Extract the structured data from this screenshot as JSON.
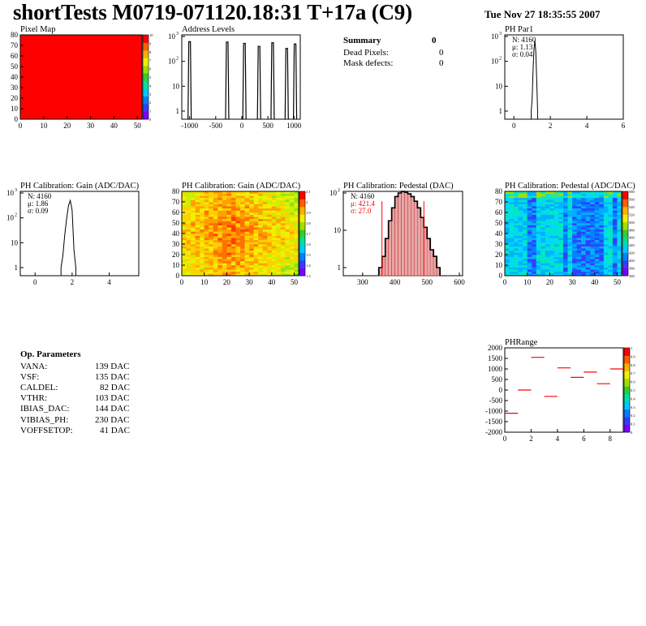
{
  "page": {
    "title": "shortTests M0719-071120.18:31 T+17a (C9)",
    "timestamp": "Tue Nov 27 18:35:55 2007"
  },
  "summary": {
    "heading": "Summary",
    "heading_value": "0",
    "rows": [
      {
        "label": "Dead Pixels:",
        "value": "0"
      },
      {
        "label": "Mask defects:",
        "value": "0"
      }
    ]
  },
  "op_params": {
    "heading": "Op. Parameters",
    "rows": [
      {
        "name": "VANA:",
        "value": "139 DAC"
      },
      {
        "name": "VSF:",
        "value": "135 DAC"
      },
      {
        "name": "CALDEL:",
        "value": "82 DAC"
      },
      {
        "name": "VTHR:",
        "value": "103 DAC"
      },
      {
        "name": "IBIAS_DAC:",
        "value": "144 DAC"
      },
      {
        "name": "VIBIAS_PH:",
        "value": "230 DAC"
      },
      {
        "name": "VOFFSETOP:",
        "value": "41 DAC"
      }
    ]
  },
  "colors": {
    "hist_line": "#000000",
    "pixel_map_fill": "#ff0000",
    "fit_line": "#ff0000",
    "pedestal_fill": "#c02020"
  },
  "chart_data": [
    {
      "id": "pixel_map",
      "type": "heatmap",
      "title": "Pixel Map",
      "uniform_value": 10,
      "xlim": [
        0,
        52
      ],
      "ylim": [
        0,
        80
      ],
      "xticks": [
        "0",
        "10",
        "20",
        "30",
        "40",
        "50"
      ],
      "yticks": [
        "0",
        "10",
        "20",
        "30",
        "40",
        "50",
        "60",
        "70",
        "80"
      ],
      "zticks": [
        "0",
        "1",
        "2",
        "3",
        "4",
        "5",
        "6",
        "7",
        "8",
        "9",
        "10"
      ]
    },
    {
      "id": "address_levels",
      "type": "bar",
      "title": "Address Levels",
      "xlim": [
        -1150,
        1120
      ],
      "xticks": [
        "-1000",
        "-500",
        "0",
        "500",
        "1000"
      ],
      "yticks": [
        "1",
        "10",
        "10^2",
        "10^3"
      ],
      "log_y": true,
      "peaks": [
        {
          "x": -1000,
          "height": 620
        },
        {
          "x": -280,
          "height": 600
        },
        {
          "x": 50,
          "height": 530
        },
        {
          "x": 330,
          "height": 400
        },
        {
          "x": 590,
          "height": 560
        },
        {
          "x": 860,
          "height": 330
        },
        {
          "x": 1020,
          "height": 500
        }
      ]
    },
    {
      "id": "ph_par1",
      "type": "bar",
      "title": "PH Par1",
      "stats": {
        "N": "N: 4160",
        "mean": "μ: 1.13",
        "rms": "σ: 0.04"
      },
      "xlim": [
        -0.5,
        6
      ],
      "xticks": [
        "0",
        "2",
        "4",
        "6"
      ],
      "yticks": [
        "1",
        "10",
        "10^2",
        "10^3"
      ],
      "log_y": true,
      "x": [
        0.95,
        1.0,
        1.05,
        1.1,
        1.15,
        1.2,
        1.25,
        1.3
      ],
      "values": [
        1,
        3,
        40,
        300,
        700,
        250,
        20,
        1
      ]
    },
    {
      "id": "gain_hist",
      "type": "bar",
      "title": "PH Calibration: Gain (ADC/DAC)",
      "stats": {
        "N": "N: 4160",
        "mean": "μ: 1.86",
        "rms": "σ: 0.09"
      },
      "xlim": [
        -0.8,
        5.6
      ],
      "xticks": [
        "0",
        "2",
        "4"
      ],
      "yticks": [
        "1",
        "10",
        "10^2",
        "10^3"
      ],
      "log_y": true,
      "x": [
        1.4,
        1.5,
        1.6,
        1.7,
        1.8,
        1.9,
        2.0,
        2.1,
        2.2
      ],
      "values": [
        1,
        3,
        20,
        90,
        300,
        500,
        200,
        5,
        1
      ]
    },
    {
      "id": "gain_map",
      "type": "heatmap",
      "title": "PH Calibration: Gain (ADC/DAC)",
      "xlim": [
        0,
        52
      ],
      "ylim": [
        0,
        80
      ],
      "xticks": [
        "0",
        "10",
        "20",
        "30",
        "40",
        "50"
      ],
      "yticks": [
        "0",
        "10",
        "20",
        "30",
        "40",
        "50",
        "60",
        "70",
        "80"
      ],
      "zticks": [
        "1.3",
        "1.4",
        "1.5",
        "1.6",
        "1.7",
        "1.8",
        "1.9",
        "2",
        "2.1"
      ]
    },
    {
      "id": "pedestal_hist",
      "type": "bar",
      "title": "PH Calibration: Pedestal (DAC)",
      "stats": {
        "N": "N: 4160",
        "mean": "μ: 421.4",
        "rms": "σ: 27.0"
      },
      "xlim": [
        240,
        610
      ],
      "xticks": [
        "300",
        "400",
        "500",
        "600"
      ],
      "yticks": [
        "1",
        "10",
        "10^2"
      ],
      "log_y": true,
      "x": [
        350,
        360,
        370,
        380,
        390,
        400,
        410,
        420,
        430,
        440,
        450,
        460,
        470,
        480,
        490,
        500,
        510,
        520,
        530
      ],
      "values": [
        1,
        2,
        6,
        18,
        40,
        80,
        100,
        110,
        105,
        95,
        80,
        60,
        40,
        22,
        12,
        6,
        3,
        2,
        1
      ],
      "markers": [
        360,
        490
      ]
    },
    {
      "id": "pedestal_map",
      "type": "heatmap",
      "title": "PH Calibration: Pedestal (ADC/DAC)",
      "xlim": [
        0,
        52
      ],
      "ylim": [
        0,
        80
      ],
      "xticks": [
        "0",
        "10",
        "20",
        "30",
        "40",
        "50"
      ],
      "yticks": [
        "0",
        "10",
        "20",
        "30",
        "40",
        "50",
        "60",
        "70",
        "80"
      ],
      "zticks": [
        "360",
        "380",
        "400",
        "420",
        "440",
        "460",
        "480",
        "500",
        "520",
        "540",
        "560",
        "580"
      ]
    },
    {
      "id": "ph_range",
      "type": "scatter",
      "title": "PHRange",
      "xlim": [
        0,
        9
      ],
      "ylim": [
        -2000,
        2000
      ],
      "xticks": [
        "0",
        "2",
        "4",
        "6",
        "8"
      ],
      "yticks": [
        "-2000",
        "-1500",
        "-1000",
        "-500",
        "0",
        "500",
        "1000",
        "1500",
        "2000"
      ],
      "zticks": [
        "0",
        "0.1",
        "0.2",
        "0.3",
        "0.4",
        "0.5",
        "0.6",
        "0.7",
        "0.8",
        "0.9",
        "1"
      ],
      "x": [
        0,
        1,
        2,
        3,
        4,
        5,
        6,
        7,
        8
      ],
      "values": [
        -1100,
        0,
        1550,
        -300,
        1050,
        600,
        850,
        300,
        1000
      ]
    }
  ]
}
